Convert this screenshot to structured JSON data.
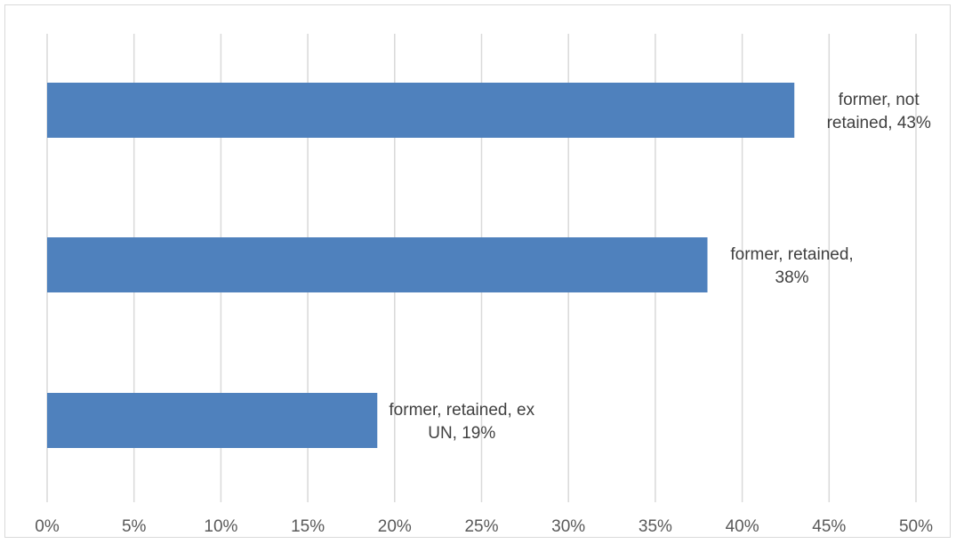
{
  "chart_data": {
    "type": "bar",
    "orientation": "horizontal",
    "title": "",
    "xlabel": "",
    "ylabel": "",
    "xlim": [
      0,
      50
    ],
    "x_ticks": [
      "0%",
      "5%",
      "10%",
      "15%",
      "20%",
      "25%",
      "30%",
      "35%",
      "40%",
      "45%",
      "50%"
    ],
    "grid": true,
    "legend": "none",
    "bar_color": "#4f81bd",
    "categories": [
      "former, not retained",
      "former, retained",
      "former, retained, ex UN"
    ],
    "values": [
      43,
      38,
      19
    ],
    "data_labels": [
      [
        "former, not",
        "retained, 43%"
      ],
      [
        "former, retained,",
        "38%"
      ],
      [
        "former, retained, ex",
        "UN, 19%"
      ]
    ]
  }
}
